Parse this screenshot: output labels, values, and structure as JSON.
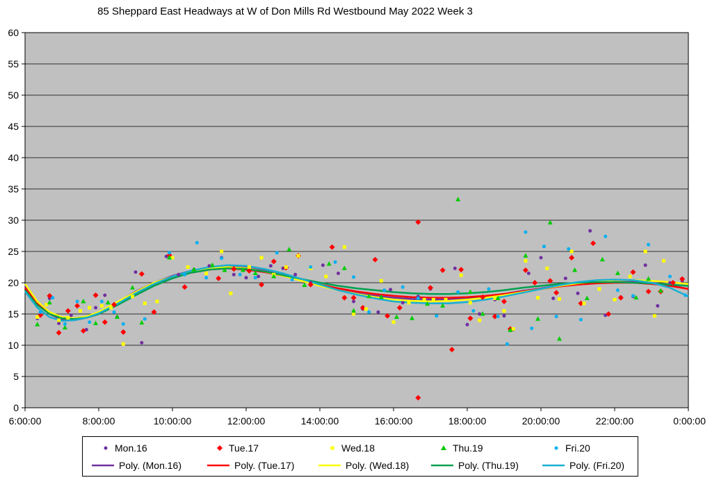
{
  "chart_data": {
    "type": "scatter",
    "title": "85 Sheppard East Headways at W of Don Mills Rd Westbound May 2022  Week 3",
    "xlabel": "",
    "ylabel": "",
    "xlim": [
      "6:00:00",
      "0:00:00"
    ],
    "ylim": [
      0,
      60
    ],
    "yticks": [
      "0",
      "5",
      "10",
      "15",
      "20",
      "25",
      "30",
      "35",
      "40",
      "45",
      "50",
      "55",
      "60"
    ],
    "xticks": [
      "6:00:00",
      "8:00:00",
      "10:00:00",
      "12:00:00",
      "14:00:00",
      "16:00:00",
      "18:00:00",
      "20:00:00",
      "22:00:00",
      "0:00:00"
    ],
    "grid": true,
    "legend_position": "bottom",
    "series": [
      {
        "name": "Mon.16",
        "marker": "circle",
        "color": "#7030A0",
        "x": [
          "6:20",
          "6:40",
          "6:55",
          "7:15",
          "7:40",
          "7:55",
          "8:10",
          "8:30",
          "8:40",
          "9:00",
          "9:10",
          "9:50",
          "10:10",
          "10:35",
          "11:00",
          "11:20",
          "11:40",
          "12:00",
          "12:20",
          "12:40",
          "13:00",
          "13:20",
          "13:45",
          "14:05",
          "14:30",
          "14:55",
          "15:10",
          "15:35",
          "15:55",
          "16:15",
          "16:40",
          "17:00",
          "17:40",
          "18:00",
          "18:20",
          "18:45",
          "19:00",
          "19:15",
          "19:40",
          "20:00",
          "20:20",
          "20:40",
          "21:00",
          "21:20",
          "21:45",
          "22:10",
          "22:30",
          "22:50",
          "23:10",
          "23:30",
          "23:50"
        ],
        "y": [
          14.3,
          17.5,
          13.5,
          14.8,
          12.5,
          16.0,
          18.0,
          14.5,
          12.2,
          21.7,
          10.4,
          24.2,
          21.3,
          22.1,
          22.7,
          24.0,
          21.3,
          20.8,
          21.0,
          22.7,
          22.3,
          21.3,
          20.0,
          22.8,
          21.5,
          17.0,
          15.8,
          15.3,
          18.9,
          16.8,
          17.8,
          19.0,
          22.3,
          13.3,
          15.0,
          17.3,
          14.7,
          12.5,
          21.5,
          24.0,
          17.5,
          20.7,
          18.3,
          28.3,
          14.8,
          17.7,
          17.8,
          22.8,
          16.3,
          20.0,
          20.3
        ]
      },
      {
        "name": "Tue.17",
        "marker": "diamond",
        "color": "#FF0000",
        "x": [
          "6:25",
          "6:40",
          "6:55",
          "7:10",
          "7:25",
          "7:35",
          "7:55",
          "8:10",
          "8:25",
          "8:40",
          "9:10",
          "9:30",
          "9:55",
          "10:20",
          "11:15",
          "11:40",
          "12:05",
          "12:25",
          "12:45",
          "13:05",
          "13:25",
          "13:45",
          "14:20",
          "14:40",
          "14:55",
          "15:10",
          "15:30",
          "15:50",
          "16:10",
          "16:40",
          "16:40",
          "17:00",
          "17:20",
          "17:35",
          "17:50",
          "18:05",
          "18:25",
          "18:45",
          "19:00",
          "19:10",
          "19:35",
          "19:50",
          "20:15",
          "20:25",
          "20:50",
          "21:05",
          "21:25",
          "21:50",
          "22:10",
          "22:30",
          "22:55",
          "23:15",
          "23:35",
          "23:50"
        ],
        "y": [
          14.8,
          17.9,
          12.0,
          15.5,
          16.3,
          12.3,
          18.0,
          13.7,
          16.5,
          12.1,
          21.4,
          15.3,
          24.4,
          19.3,
          20.7,
          22.2,
          21.9,
          19.7,
          23.4,
          22.4,
          24.3,
          19.7,
          25.7,
          17.6,
          17.6,
          16.0,
          23.7,
          14.7,
          16.0,
          29.7,
          1.6,
          19.2,
          22.0,
          9.3,
          22.1,
          14.3,
          17.7,
          14.6,
          17.0,
          12.6,
          22.0,
          20.0,
          20.3,
          18.4,
          24.0,
          16.7,
          26.3,
          15.0,
          17.6,
          21.7,
          18.6,
          18.6,
          20.0,
          20.6
        ]
      },
      {
        "name": "Wed.18",
        "marker": "square",
        "color": "#FFFF00",
        "x": [
          "6:20",
          "6:35",
          "6:55",
          "7:10",
          "7:30",
          "7:45",
          "8:05",
          "8:20",
          "8:40",
          "8:55",
          "9:15",
          "9:35",
          "10:00",
          "10:25",
          "10:55",
          "11:20",
          "11:35",
          "12:05",
          "12:25",
          "12:45",
          "13:05",
          "13:25",
          "13:45",
          "14:10",
          "14:40",
          "14:55",
          "15:15",
          "15:40",
          "16:00",
          "16:25",
          "16:50",
          "17:05",
          "17:25",
          "17:50",
          "18:05",
          "18:20",
          "18:45",
          "19:00",
          "19:15",
          "19:35",
          "19:55",
          "20:10",
          "20:30",
          "20:50",
          "21:10",
          "21:35",
          "22:00",
          "22:25",
          "22:50",
          "23:05",
          "23:20"
        ],
        "y": [
          14.5,
          16.5,
          14.0,
          14.4,
          15.5,
          16.0,
          16.3,
          16.0,
          10.2,
          17.8,
          16.7,
          17.0,
          24.0,
          22.5,
          21.5,
          25.0,
          18.3,
          22.5,
          24.0,
          21.3,
          22.5,
          24.3,
          22.3,
          21.0,
          25.7,
          15.0,
          15.8,
          20.3,
          13.7,
          16.8,
          17.3,
          17.3,
          17.3,
          21.2,
          16.8,
          14.0,
          17.5,
          15.5,
          12.6,
          23.5,
          17.6,
          22.3,
          17.4,
          25.0,
          16.7,
          19.0,
          17.3,
          21.0,
          25.0,
          14.7,
          23.5
        ]
      },
      {
        "name": "Thu.19",
        "marker": "triangle",
        "color": "#00CC00",
        "x": [
          "6:20",
          "6:40",
          "7:05",
          "7:35",
          "7:55",
          "8:15",
          "8:30",
          "8:55",
          "9:10",
          "9:55",
          "10:35",
          "11:05",
          "11:25",
          "11:55",
          "12:15",
          "12:45",
          "13:10",
          "13:35",
          "14:15",
          "14:40",
          "14:55",
          "15:20",
          "15:40",
          "16:05",
          "16:30",
          "16:55",
          "17:20",
          "17:45",
          "18:05",
          "18:25",
          "18:50",
          "19:10",
          "19:35",
          "19:55",
          "20:15",
          "20:30",
          "20:55",
          "21:15",
          "21:40",
          "22:05",
          "22:35",
          "22:55",
          "23:15"
        ],
        "y": [
          13.3,
          16.8,
          12.8,
          17.0,
          13.5,
          16.8,
          14.5,
          19.2,
          13.6,
          24.0,
          22.1,
          22.8,
          22.0,
          22.0,
          21.5,
          21.0,
          25.3,
          19.6,
          23.0,
          22.3,
          15.5,
          17.8,
          17.7,
          14.5,
          14.3,
          16.6,
          16.3,
          33.3,
          18.5,
          15.0,
          17.5,
          12.4,
          24.3,
          14.2,
          29.6,
          11.0,
          22.0,
          17.5,
          23.7,
          21.5,
          17.6,
          20.6,
          18.7
        ]
      },
      {
        "name": "Fri.20",
        "marker": "circle",
        "color": "#00B0F0",
        "x": [
          "6:25",
          "6:45",
          "7:05",
          "7:25",
          "7:45",
          "8:05",
          "8:25",
          "8:40",
          "9:15",
          "9:55",
          "10:20",
          "10:40",
          "10:55",
          "11:20",
          "11:50",
          "12:15",
          "12:50",
          "13:15",
          "13:45",
          "14:25",
          "14:55",
          "15:20",
          "15:45",
          "16:15",
          "16:40",
          "17:10",
          "17:45",
          "18:10",
          "18:35",
          "18:50",
          "19:05",
          "19:35",
          "19:45",
          "20:05",
          "20:25",
          "20:45",
          "21:05",
          "21:45",
          "22:05",
          "22:30",
          "22:55",
          "23:30",
          "23:55"
        ],
        "y": [
          15.3,
          17.6,
          13.4,
          17.0,
          13.7,
          17.0,
          15.3,
          13.4,
          14.2,
          24.8,
          21.3,
          26.4,
          20.8,
          23.9,
          21.3,
          20.8,
          24.8,
          20.5,
          22.5,
          23.3,
          20.9,
          15.3,
          18.8,
          19.3,
          17.5,
          14.7,
          18.5,
          15.5,
          19.0,
          14.6,
          10.2,
          28.1,
          12.7,
          25.8,
          14.6,
          25.4,
          14.1,
          27.4,
          18.8,
          17.9,
          26.1,
          21.0,
          18.0
        ]
      },
      {
        "name": "Poly. (Mon.16)",
        "type": "line",
        "color": "#7030A0",
        "x": [
          "6:00",
          "6:20",
          "6:40",
          "7:00",
          "7:20",
          "7:40",
          "8:00",
          "8:30",
          "9:00",
          "9:30",
          "10:00",
          "10:30",
          "11:00",
          "11:30",
          "12:00",
          "12:30",
          "13:00",
          "13:30",
          "14:00",
          "14:30",
          "15:00",
          "15:30",
          "16:00",
          "16:30",
          "17:00",
          "17:30",
          "18:00",
          "18:30",
          "19:00",
          "19:30",
          "20:00",
          "20:30",
          "21:00",
          "21:30",
          "22:00",
          "22:30",
          "23:00",
          "23:30",
          "0:00"
        ],
        "y": [
          19.5,
          16.7,
          15.0,
          14.1,
          14.0,
          14.4,
          15.2,
          16.8,
          18.6,
          20.0,
          21.1,
          21.9,
          22.4,
          22.6,
          22.4,
          21.9,
          21.2,
          20.4,
          19.6,
          18.9,
          18.3,
          17.9,
          17.6,
          17.4,
          17.3,
          17.3,
          17.5,
          17.8,
          18.2,
          18.7,
          19.1,
          19.6,
          20.0,
          20.2,
          20.3,
          20.2,
          20.0,
          19.6,
          19.0
        ]
      },
      {
        "name": "Poly. (Tue.17)",
        "type": "line",
        "color": "#FF0000",
        "x": [
          "6:00",
          "6:20",
          "6:40",
          "7:00",
          "7:20",
          "7:40",
          "8:00",
          "8:30",
          "9:00",
          "9:30",
          "10:00",
          "10:30",
          "11:00",
          "11:30",
          "12:00",
          "12:30",
          "13:00",
          "13:30",
          "14:00",
          "14:30",
          "15:00",
          "15:30",
          "16:00",
          "16:30",
          "17:00",
          "17:30",
          "18:00",
          "18:30",
          "19:00",
          "19:30",
          "20:00",
          "20:30",
          "21:00",
          "21:30",
          "22:00",
          "22:30",
          "23:00",
          "23:30",
          "0:00"
        ],
        "y": [
          19.2,
          16.6,
          15.0,
          14.3,
          14.1,
          14.4,
          15.0,
          16.5,
          18.2,
          19.7,
          20.8,
          21.6,
          22.1,
          22.3,
          22.1,
          21.7,
          21.1,
          20.4,
          19.7,
          19.1,
          18.6,
          18.2,
          17.9,
          17.7,
          17.6,
          17.6,
          17.7,
          17.9,
          18.2,
          18.6,
          19.0,
          19.4,
          19.7,
          19.9,
          20.0,
          20.0,
          19.8,
          19.5,
          19.0
        ]
      },
      {
        "name": "Poly. (Wed.18)",
        "type": "line",
        "color": "#FFFF00",
        "x": [
          "6:00",
          "6:20",
          "6:40",
          "7:00",
          "7:20",
          "7:40",
          "8:00",
          "8:30",
          "9:00",
          "9:30",
          "10:00",
          "10:30",
          "11:00",
          "11:30",
          "12:00",
          "12:30",
          "13:00",
          "13:30",
          "14:00",
          "14:30",
          "15:00",
          "15:30",
          "16:00",
          "16:30",
          "17:00",
          "17:30",
          "18:00",
          "18:30",
          "19:00",
          "19:30",
          "20:00",
          "20:30",
          "21:00",
          "21:30",
          "22:00",
          "22:30",
          "23:00",
          "23:30",
          "0:00"
        ],
        "y": [
          19.8,
          17.0,
          15.3,
          14.5,
          14.3,
          14.6,
          15.3,
          16.9,
          18.5,
          20.0,
          21.0,
          21.8,
          22.3,
          22.5,
          22.3,
          21.8,
          21.1,
          20.3,
          19.5,
          18.8,
          18.2,
          17.7,
          17.3,
          17.1,
          17.0,
          17.1,
          17.3,
          17.6,
          18.0,
          18.5,
          19.0,
          19.5,
          19.9,
          20.2,
          20.4,
          20.4,
          20.3,
          20.1,
          19.8
        ]
      },
      {
        "name": "Poly. (Thu.19)",
        "type": "line",
        "color": "#00A050",
        "x": [
          "6:00",
          "6:20",
          "6:40",
          "7:00",
          "7:20",
          "7:40",
          "8:00",
          "8:30",
          "9:00",
          "9:30",
          "10:00",
          "10:30",
          "11:00",
          "11:30",
          "12:00",
          "12:30",
          "13:00",
          "13:30",
          "14:00",
          "14:30",
          "15:00",
          "15:30",
          "16:00",
          "16:30",
          "17:00",
          "17:30",
          "18:00",
          "18:30",
          "19:00",
          "19:30",
          "20:00",
          "20:30",
          "21:00",
          "21:30",
          "22:00",
          "22:30",
          "23:00",
          "23:30",
          "0:00"
        ],
        "y": [
          18.8,
          16.4,
          15.0,
          14.3,
          14.2,
          14.4,
          15.0,
          16.4,
          18.0,
          19.5,
          20.7,
          21.6,
          22.1,
          22.3,
          22.2,
          21.8,
          21.2,
          20.6,
          20.0,
          19.5,
          19.1,
          18.8,
          18.5,
          18.3,
          18.2,
          18.2,
          18.3,
          18.5,
          18.8,
          19.2,
          19.5,
          19.8,
          20.0,
          20.1,
          20.1,
          20.0,
          19.9,
          19.7,
          19.5
        ]
      },
      {
        "name": "Poly. (Fri.20)",
        "type": "line",
        "color": "#1AAFD0",
        "x": [
          "6:00",
          "6:20",
          "6:40",
          "7:00",
          "7:20",
          "7:40",
          "8:00",
          "8:30",
          "9:00",
          "9:30",
          "10:00",
          "10:30",
          "11:00",
          "11:30",
          "12:00",
          "12:30",
          "13:00",
          "13:30",
          "14:00",
          "14:30",
          "15:00",
          "15:30",
          "16:00",
          "16:30",
          "17:00",
          "17:30",
          "18:00",
          "18:30",
          "19:00",
          "19:30",
          "20:00",
          "20:30",
          "21:00",
          "21:30",
          "22:00",
          "22:30",
          "23:00",
          "23:30",
          "0:00"
        ],
        "y": [
          18.6,
          16.0,
          14.5,
          13.9,
          14.0,
          14.4,
          15.1,
          16.6,
          18.3,
          19.8,
          21.0,
          21.9,
          22.5,
          22.8,
          22.7,
          22.2,
          21.5,
          20.6,
          19.7,
          18.8,
          18.1,
          17.5,
          17.0,
          16.8,
          16.7,
          16.7,
          16.9,
          17.3,
          17.8,
          18.4,
          19.0,
          19.6,
          20.1,
          20.4,
          20.5,
          20.4,
          20.0,
          19.2,
          17.8
        ]
      }
    ]
  },
  "legend": {
    "row1": [
      "Mon.16",
      "Tue.17",
      "Wed.18",
      "Thu.19",
      "Fri.20"
    ],
    "row2": [
      "Poly. (Mon.16)",
      "Poly. (Tue.17)",
      "Poly. (Wed.18)",
      "Poly. (Thu.19)",
      "Poly. (Fri.20)"
    ]
  }
}
